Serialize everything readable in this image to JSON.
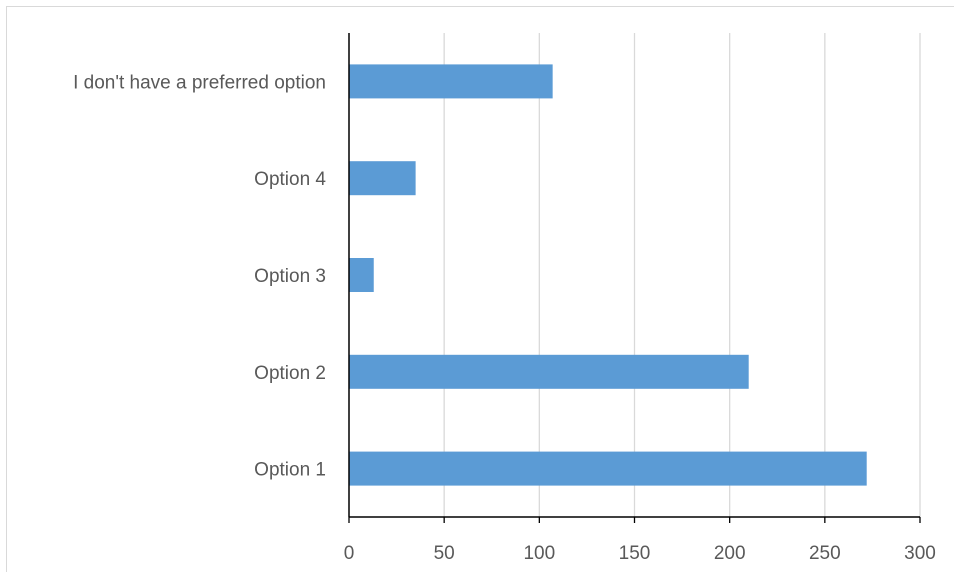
{
  "chart_data": {
    "type": "bar",
    "orientation": "horizontal",
    "categories": [
      "Option 1",
      "Option 2",
      "Option 3",
      "Option 4",
      "I don't have a preferred option"
    ],
    "values": [
      272,
      210,
      13,
      35,
      107
    ],
    "xlim": [
      0,
      300
    ],
    "x_ticks": [
      0,
      50,
      100,
      150,
      200,
      250,
      300
    ],
    "grid": "vertical",
    "legend": "none",
    "bar_color": "#5b9bd5",
    "grid_color": "#d9d9d9",
    "axis_color": "#000000",
    "label_color": "#595959"
  }
}
